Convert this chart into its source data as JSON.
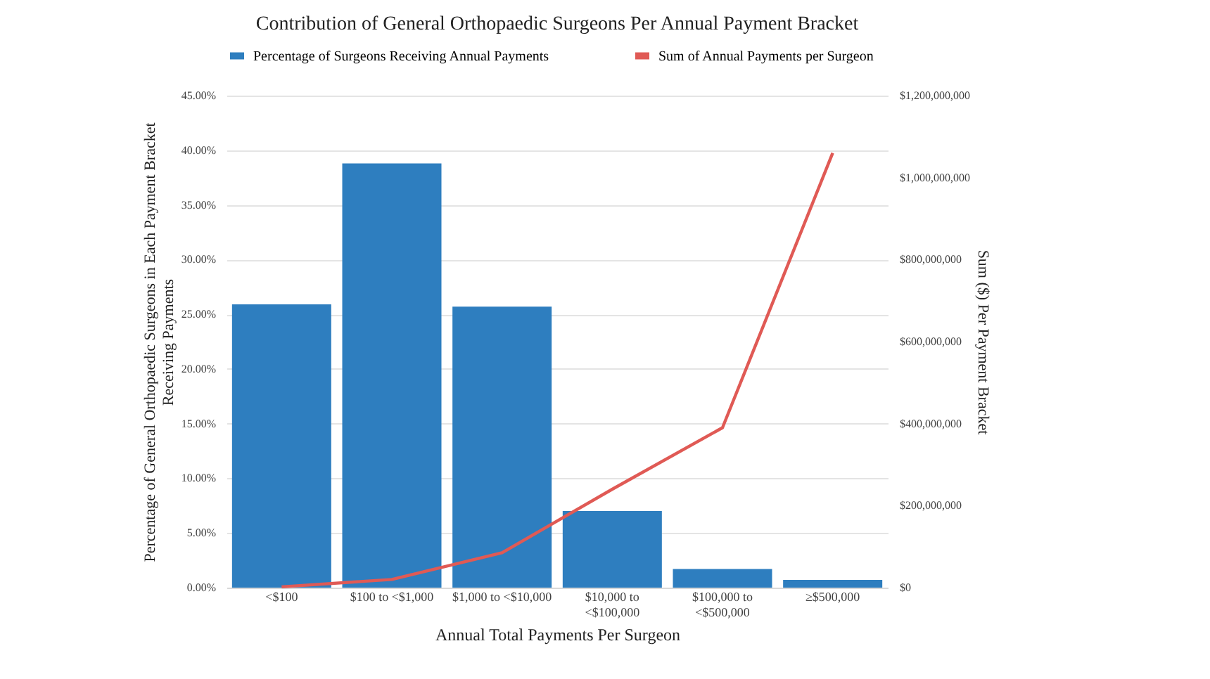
{
  "chart_data": {
    "type": "bar",
    "title": "Contribution of General Orthopaedic Surgeons Per Annual Payment Bracket",
    "xlabel": "Annual Total Payments Per Surgeon",
    "ylabel": "Percentage of General Orthopaedic Surgeons in Each Payment Bracket Receiving Payments",
    "y2label": "Sum ($) Per Payment Bracket",
    "categories": [
      "<$100",
      "$100 to <$1,000",
      "$1,000 to <$10,000",
      "$10,000 to <$100,000",
      "$100,000 to <$500,000",
      "≥$500,000"
    ],
    "series": [
      {
        "name": "Percentage of Surgeons Receiving Annual Payments",
        "color": "#2e7ebf",
        "values": [
          25.9,
          38.8,
          25.7,
          7.0,
          1.7,
          0.7
        ]
      },
      {
        "name": "Sum of Annual Payments per Surgeon",
        "type": "line",
        "axis": "y2",
        "color": "#e05a55",
        "values": [
          2000000,
          20000000,
          85000000,
          240000000,
          390000000,
          1060000000
        ]
      }
    ],
    "ylim": [
      0,
      45
    ],
    "yticks": [
      {
        "value": 0,
        "label": "0.00%"
      },
      {
        "value": 5,
        "label": "5.00%"
      },
      {
        "value": 10,
        "label": "10.00%"
      },
      {
        "value": 15,
        "label": "15.00%"
      },
      {
        "value": 20,
        "label": "20.00%"
      },
      {
        "value": 25,
        "label": "25.00%"
      },
      {
        "value": 30,
        "label": "30.00%"
      },
      {
        "value": 35,
        "label": "35.00%"
      },
      {
        "value": 40,
        "label": "40.00%"
      },
      {
        "value": 45,
        "label": "45.00%"
      }
    ],
    "y2lim": [
      0,
      1200000000
    ],
    "y2ticks": [
      {
        "value": 0,
        "label": "$0"
      },
      {
        "value": 200000000,
        "label": "$200,000,000"
      },
      {
        "value": 400000000,
        "label": "$400,000,000"
      },
      {
        "value": 600000000,
        "label": "$600,000,000"
      },
      {
        "value": 800000000,
        "label": "$800,000,000"
      },
      {
        "value": 1000000000,
        "label": "$1,000,000,000"
      },
      {
        "value": 1200000000,
        "label": "$1,200,000,000"
      }
    ],
    "grid": "y",
    "legend": "top",
    "marker": "none",
    "line_style": "solid"
  }
}
